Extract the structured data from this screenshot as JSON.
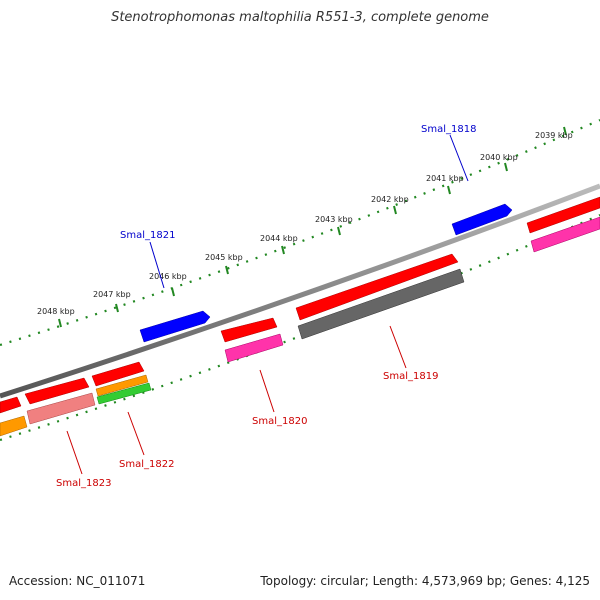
{
  "header": {
    "title": "Stenotrophomonas maltophilia R551-3, complete genome"
  },
  "footer": {
    "accession": "Accession: NC_011071",
    "summary": "Topology: circular; Length: 4,573,969 bp; Genes: 4,125"
  },
  "scale": {
    "ticks": [
      {
        "label": "2039 kbp"
      },
      {
        "label": "2040 kbp"
      },
      {
        "label": "2041 kbp"
      },
      {
        "label": "2042 kbp"
      },
      {
        "label": "2043 kbp"
      },
      {
        "label": "2044 kbp"
      },
      {
        "label": "2045 kbp"
      },
      {
        "label": "2046 kbp"
      },
      {
        "label": "2047 kbp"
      },
      {
        "label": "2048 kbp"
      }
    ]
  },
  "genes": {
    "labeled": [
      {
        "name": "Smal_1818",
        "color": "#0000cc"
      },
      {
        "name": "Smal_1819",
        "color": "#cc0000"
      },
      {
        "name": "Smal_1820",
        "color": "#cc0000"
      },
      {
        "name": "Smal_1821",
        "color": "#0000cc"
      },
      {
        "name": "Smal_1822",
        "color": "#cc0000"
      },
      {
        "name": "Smal_1823",
        "color": "#cc0000"
      }
    ]
  },
  "colors": {
    "forward_gene": "#0000ff",
    "cds": "#ff0000",
    "rna_pink": "#ff33aa",
    "pseudo_gray": "#666666",
    "salmon": "#f08080",
    "orange": "#ff9900",
    "green": "#33cc33",
    "backbone": "#888888",
    "tick_green": "#228822"
  }
}
